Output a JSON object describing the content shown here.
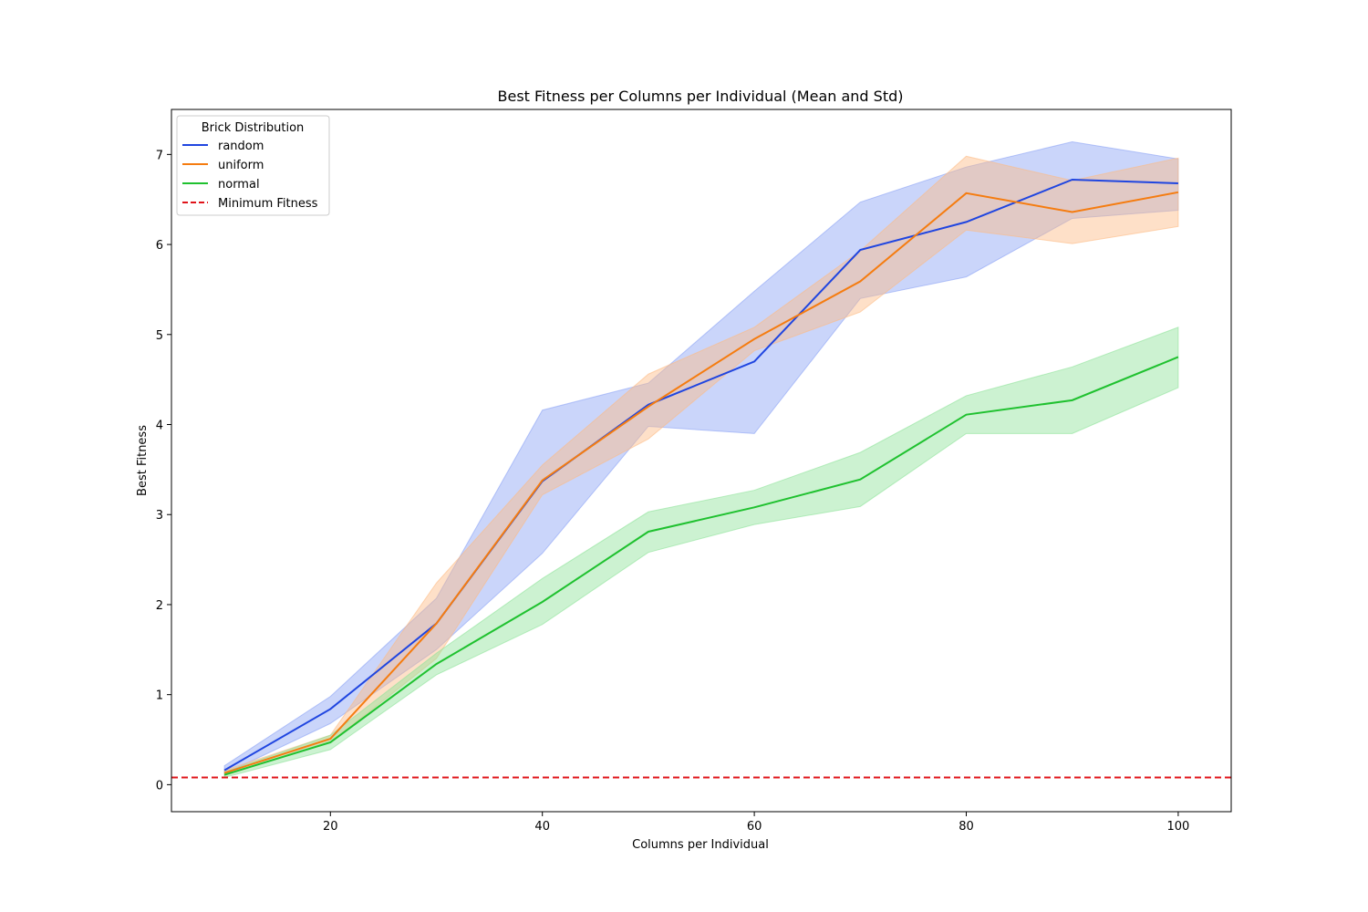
{
  "chart_data": {
    "type": "line",
    "title": "Best Fitness per Columns per Individual (Mean and Std)",
    "xlabel": "Columns per Individual",
    "ylabel": "Best Fitness",
    "xlim": [
      5,
      105
    ],
    "ylim": [
      -0.3,
      7.5
    ],
    "xticks": [
      20,
      40,
      60,
      80,
      100
    ],
    "yticks": [
      0,
      1,
      2,
      3,
      4,
      5,
      6,
      7
    ],
    "grid": false,
    "legend": {
      "title": "Brick Distribution",
      "placement": "top-left"
    },
    "x": [
      10,
      20,
      30,
      40,
      50,
      60,
      70,
      80,
      90,
      100
    ],
    "series": [
      {
        "name": "random",
        "color": "#1f45e0",
        "band_color": "#8aa1f5",
        "values": [
          0.16,
          0.84,
          1.79,
          3.37,
          4.22,
          4.7,
          5.94,
          6.25,
          6.72,
          6.68
        ],
        "lower": [
          0.12,
          0.68,
          1.5,
          2.57,
          3.98,
          3.9,
          5.4,
          5.64,
          6.29,
          6.38
        ],
        "upper": [
          0.21,
          0.98,
          2.07,
          4.16,
          4.46,
          5.48,
          6.47,
          6.86,
          7.14,
          6.95
        ]
      },
      {
        "name": "uniform",
        "color": "#f57c10",
        "band_color": "#fdbb84",
        "values": [
          0.13,
          0.51,
          1.79,
          3.38,
          4.2,
          4.95,
          5.59,
          6.57,
          6.36,
          6.58
        ],
        "lower": [
          0.1,
          0.47,
          1.4,
          3.22,
          3.84,
          4.82,
          5.25,
          6.16,
          6.01,
          6.2
        ],
        "upper": [
          0.16,
          0.55,
          2.24,
          3.55,
          4.56,
          5.08,
          5.93,
          6.98,
          6.71,
          6.96
        ]
      },
      {
        "name": "normal",
        "color": "#1fc12f",
        "band_color": "#8ee39a",
        "values": [
          0.11,
          0.47,
          1.34,
          2.03,
          2.81,
          3.08,
          3.39,
          4.11,
          4.27,
          4.75
        ],
        "lower": [
          0.08,
          0.39,
          1.22,
          1.78,
          2.58,
          2.89,
          3.09,
          3.9,
          3.9,
          4.41
        ],
        "upper": [
          0.14,
          0.55,
          1.46,
          2.29,
          3.03,
          3.27,
          3.69,
          4.32,
          4.64,
          5.08
        ]
      }
    ],
    "reference_line": {
      "name": "Minimum Fitness",
      "y": 0.08,
      "color": "#e0141a",
      "style": "dashed"
    }
  }
}
